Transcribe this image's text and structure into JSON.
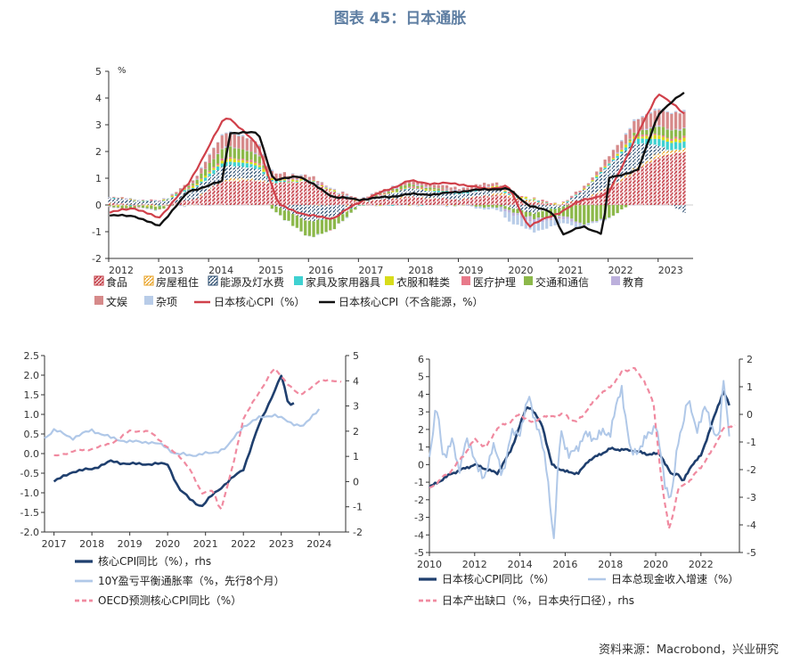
{
  "page": {
    "title": "图表 45：日本通胀",
    "source": "资料来源：Macrobond，兴业研究"
  },
  "colors": {
    "food": "#c0303a",
    "housing": "#e8a020",
    "energy": "#2a4b6e",
    "furniture": "#3fd1d1",
    "clothing": "#d8dc1a",
    "medical": "#e87a8a",
    "transport": "#8cb84a",
    "education": "#bcb0dc",
    "culture": "#d68a8a",
    "misc": "#b8cce8",
    "core_cpi": "#d0404a",
    "core_ex_energy": "#111111",
    "navy": "#1f3f6e",
    "lightblue": "#b0c8e8",
    "pink": "#f08aa0"
  },
  "chart_data": [
    {
      "type": "bar",
      "id": "top",
      "unit_label": "%",
      "ylim": [
        -2,
        5
      ],
      "y_ticks": [
        "-2",
        "-1",
        "0",
        "1",
        "2",
        "3",
        "4",
        "5"
      ],
      "x_ticks": [
        "2012",
        "2013",
        "2014",
        "2015",
        "2016",
        "2017",
        "2018",
        "2019",
        "2020",
        "2021",
        "2022",
        "2023"
      ],
      "x_range": [
        2012.0,
        2023.7
      ],
      "legend": [
        {
          "label": "食品",
          "swatch": "hatch",
          "color": "#c0303a"
        },
        {
          "label": "房屋租住",
          "swatch": "hatch",
          "color": "#e8a020"
        },
        {
          "label": "能源及灯水费",
          "swatch": "hatch",
          "color": "#2a4b6e"
        },
        {
          "label": "家具及家用器具",
          "swatch": "solid",
          "color": "#3fd1d1"
        },
        {
          "label": "衣服和鞋类",
          "swatch": "solid",
          "color": "#d8dc1a"
        },
        {
          "label": "医疗护理",
          "swatch": "solid",
          "color": "#e87a8a"
        },
        {
          "label": "交通和通信",
          "swatch": "solid",
          "color": "#8cb84a"
        },
        {
          "label": "教育",
          "swatch": "solid",
          "color": "#bcb0dc"
        },
        {
          "label": "文娱",
          "swatch": "solid",
          "color": "#d68a8a"
        },
        {
          "label": "杂项",
          "swatch": "solid",
          "color": "#b8cce8"
        },
        {
          "label": "日本核心CPI（%）",
          "swatch": "line",
          "color": "#d0404a"
        },
        {
          "label": "日本核心CPI（不含能源，%）",
          "swatch": "line",
          "color": "#111111"
        }
      ],
      "bar_series_order": [
        "食品",
        "房屋租住",
        "能源及灯水费",
        "家具及家用器具",
        "衣服和鞋类",
        "医疗护理",
        "交通和通信",
        "教育",
        "文娱",
        "杂项"
      ],
      "components_knots": {
        "x": [
          2012.0,
          2013.0,
          2013.7,
          2014.3,
          2014.4,
          2015.0,
          2015.3,
          2016.0,
          2016.5,
          2017.0,
          2018.0,
          2019.0,
          2019.8,
          2020.0,
          2020.5,
          2021.0,
          2021.5,
          2022.0,
          2022.5,
          2023.0,
          2023.6
        ],
        "食品": [
          0.05,
          0.0,
          0.2,
          0.9,
          0.9,
          0.9,
          0.8,
          0.9,
          0.5,
          0.1,
          0.3,
          0.2,
          0.4,
          0.3,
          0.1,
          0.0,
          0.2,
          0.6,
          1.2,
          1.8,
          2.0
        ],
        "房屋租住": [
          0.0,
          -0.02,
          0.0,
          0.05,
          0.1,
          0.05,
          0.02,
          0.0,
          0.0,
          0.0,
          0.02,
          0.0,
          0.05,
          0.1,
          0.05,
          0.0,
          0.02,
          0.05,
          0.1,
          0.15,
          0.15
        ],
        "能源及灯水费": [
          0.2,
          0.1,
          0.4,
          0.5,
          0.5,
          0.4,
          0.0,
          -0.6,
          -0.5,
          0.0,
          0.3,
          0.2,
          0.2,
          -0.1,
          -0.3,
          -0.1,
          0.3,
          0.8,
          1.0,
          0.3,
          -0.4
        ],
        "家具及家用器具": [
          0.0,
          0.0,
          0.05,
          0.15,
          0.15,
          0.12,
          0.05,
          0.02,
          0.0,
          0.0,
          0.0,
          0.05,
          0.05,
          0.03,
          0.02,
          0.0,
          0.02,
          0.05,
          0.15,
          0.25,
          0.28
        ],
        "衣服和鞋类": [
          0.0,
          0.0,
          0.05,
          0.1,
          0.1,
          0.08,
          0.05,
          0.03,
          0.02,
          0.0,
          0.02,
          0.02,
          0.03,
          0.03,
          0.02,
          0.0,
          0.02,
          0.05,
          0.08,
          0.12,
          0.12
        ],
        "医疗护理": [
          0.0,
          0.0,
          0.02,
          0.05,
          0.05,
          0.05,
          0.03,
          0.02,
          0.02,
          0.02,
          0.03,
          0.03,
          0.03,
          0.02,
          0.02,
          0.02,
          0.02,
          0.02,
          0.03,
          0.05,
          0.05
        ],
        "交通和通信": [
          -0.05,
          -0.1,
          0.1,
          0.4,
          0.4,
          0.3,
          -0.2,
          -0.6,
          -0.4,
          0.0,
          0.1,
          0.0,
          -0.1,
          -0.1,
          -0.2,
          -0.3,
          -0.7,
          -0.5,
          0.1,
          0.3,
          0.3
        ],
        "教育": [
          0.0,
          0.0,
          0.0,
          0.02,
          0.02,
          0.02,
          0.02,
          0.02,
          0.02,
          0.02,
          0.02,
          0.02,
          0.0,
          -0.1,
          -0.15,
          -0.1,
          -0.05,
          0.0,
          0.02,
          0.03,
          0.03
        ],
        "文娱": [
          0.0,
          0.0,
          0.1,
          0.5,
          0.5,
          0.4,
          0.2,
          0.1,
          0.0,
          0.05,
          0.1,
          0.1,
          0.1,
          0.05,
          0.0,
          0.0,
          0.05,
          0.2,
          0.4,
          0.6,
          0.6
        ],
        "杂项": [
          0.0,
          0.0,
          0.0,
          0.05,
          0.05,
          0.05,
          0.02,
          0.0,
          0.0,
          0.0,
          0.0,
          0.0,
          -0.1,
          -0.3,
          -0.35,
          -0.2,
          -0.1,
          0.0,
          0.05,
          0.05,
          0.05
        ]
      },
      "core_cpi_knots": {
        "x": [
          2012.0,
          2012.5,
          2013.0,
          2013.6,
          2014.3,
          2014.4,
          2015.0,
          2015.4,
          2016.0,
          2016.5,
          2017.0,
          2017.5,
          2018.0,
          2018.5,
          2019.0,
          2019.5,
          2020.0,
          2020.4,
          2021.0,
          2021.5,
          2022.0,
          2022.5,
          2023.0,
          2023.6
        ],
        "y": [
          -0.3,
          -0.1,
          -0.5,
          0.8,
          3.2,
          3.3,
          2.2,
          0.0,
          -0.4,
          -0.5,
          0.1,
          0.5,
          0.9,
          0.8,
          0.8,
          0.6,
          0.7,
          -0.8,
          -0.3,
          0.2,
          0.4,
          2.3,
          4.2,
          3.3
        ]
      },
      "core_ex_energy_knots": {
        "x": [
          2012.0,
          2012.5,
          2013.0,
          2013.6,
          2014.3,
          2014.4,
          2015.0,
          2015.3,
          2015.8,
          2016.5,
          2017.0,
          2017.6,
          2018.0,
          2018.6,
          2019.0,
          2019.7,
          2020.0,
          2020.4,
          2020.9,
          2021.1,
          2021.5,
          2021.9,
          2022.0,
          2022.6,
          2023.0,
          2023.5,
          2023.6
        ],
        "y": [
          -0.4,
          -0.4,
          -0.8,
          0.5,
          0.9,
          2.7,
          2.7,
          0.9,
          1.1,
          0.3,
          0.2,
          0.3,
          0.4,
          0.4,
          0.5,
          0.6,
          0.6,
          0.0,
          -0.3,
          -1.1,
          -0.8,
          -1.1,
          1.0,
          1.3,
          3.4,
          4.2,
          4.2
        ]
      }
    },
    {
      "type": "line",
      "id": "bottom-left",
      "y_left_ticks": [
        "-2.0",
        "-1.5",
        "-1.0",
        "-0.5",
        "0.0",
        "0.5",
        "1.0",
        "1.5",
        "2.0",
        "2.5"
      ],
      "y_right_ticks": [
        "-2",
        "-1",
        "0",
        "1",
        "2",
        "3",
        "4",
        "5"
      ],
      "ylim_left": [
        -2.0,
        2.5
      ],
      "ylim_right": [
        -2,
        5
      ],
      "x_ticks": [
        "2017",
        "2018",
        "2019",
        "2020",
        "2021",
        "2022",
        "2023",
        "2024"
      ],
      "x_range": [
        2016.75,
        2024.7
      ],
      "series": [
        {
          "name": "核心CPI同比（%），rhs",
          "axis": "right",
          "color": "#1f3f6e",
          "x": [
            2017.0,
            2017.5,
            2018.0,
            2018.5,
            2019.0,
            2019.5,
            2020.0,
            2020.3,
            2020.6,
            2020.9,
            2021.2,
            2021.6,
            2022.0,
            2022.4,
            2022.7,
            2023.0,
            2023.2,
            2023.4
          ],
          "y": [
            0.0,
            0.4,
            0.5,
            0.8,
            0.7,
            0.7,
            0.7,
            -0.3,
            -0.7,
            -1.0,
            -0.5,
            0.0,
            0.5,
            2.2,
            3.2,
            4.2,
            3.0,
            3.2
          ]
        },
        {
          "name": "10Y盈亏平衡通胀率（%，先行8个月）",
          "axis": "left",
          "color": "#b0c8e8",
          "x": [
            2016.75,
            2017.0,
            2017.5,
            2018.0,
            2018.5,
            2019.0,
            2019.5,
            2019.9,
            2020.2,
            2020.6,
            2020.9,
            2021.2,
            2021.6,
            2022.0,
            2022.4,
            2022.8,
            2023.2,
            2023.6,
            2024.0
          ],
          "y": [
            0.4,
            0.6,
            0.4,
            0.6,
            0.4,
            0.3,
            0.3,
            0.2,
            0.0,
            -0.05,
            0.0,
            0.0,
            0.2,
            0.7,
            0.9,
            1.0,
            0.8,
            0.7,
            1.15
          ]
        },
        {
          "name": "OECD预测核心CPI同比（%）",
          "axis": "right",
          "color": "#f08aa0",
          "x": [
            2017.0,
            2017.5,
            2018.0,
            2018.5,
            2019.0,
            2019.5,
            2019.9,
            2020.3,
            2020.6,
            2020.9,
            2021.2,
            2021.4,
            2021.7,
            2022.0,
            2022.4,
            2022.8,
            2023.1,
            2023.5,
            2024.0,
            2024.6
          ],
          "y": [
            1.0,
            1.2,
            1.3,
            1.5,
            2.0,
            2.0,
            1.5,
            1.0,
            0.5,
            -0.5,
            -0.3,
            -1.2,
            0.5,
            2.5,
            3.5,
            4.5,
            4.0,
            3.4,
            4.0,
            4.0
          ]
        }
      ]
    },
    {
      "type": "line",
      "id": "bottom-right",
      "y_left_ticks": [
        "-5",
        "-4",
        "-3",
        "-2",
        "-1",
        "0",
        "1",
        "2",
        "3",
        "4",
        "5",
        "6"
      ],
      "y_right_ticks": [
        "-5",
        "-4",
        "-3",
        "-2",
        "-1",
        "0",
        "1",
        "2"
      ],
      "ylim_left": [
        -5,
        6
      ],
      "ylim_right": [
        -5,
        2
      ],
      "x_ticks": [
        "2010",
        "2012",
        "2014",
        "2016",
        "2018",
        "2020",
        "2022"
      ],
      "x_range": [
        2010.0,
        2023.7
      ],
      "series": [
        {
          "name": "日本核心CPI同比（%）",
          "axis": "left",
          "color": "#1f3f6e",
          "x": [
            2010.0,
            2011.0,
            2012.0,
            2013.0,
            2013.6,
            2014.3,
            2014.5,
            2015.0,
            2015.4,
            2016.0,
            2016.6,
            2017.0,
            2018.0,
            2019.0,
            2019.6,
            2020.2,
            2020.7,
            2021.0,
            2021.2,
            2021.6,
            2022.0,
            2022.5,
            2023.0,
            2023.3
          ],
          "y": [
            -1.3,
            -0.5,
            0.0,
            -0.5,
            0.8,
            3.3,
            3.2,
            2.2,
            0.0,
            -0.4,
            -0.5,
            0.2,
            0.9,
            0.8,
            0.6,
            0.6,
            -0.6,
            -0.5,
            -1.0,
            0.0,
            0.5,
            2.4,
            4.2,
            3.2
          ]
        },
        {
          "name": "日本总现金收入增速（%）",
          "axis": "right",
          "color": "#b0c8e8",
          "x": [
            2010.0,
            2010.3,
            2010.6,
            2011.0,
            2011.3,
            2011.6,
            2012.0,
            2012.4,
            2012.8,
            2013.2,
            2013.6,
            2014.0,
            2014.4,
            2014.8,
            2015.2,
            2015.5,
            2015.8,
            2016.2,
            2016.8,
            2017.4,
            2018.0,
            2018.5,
            2018.9,
            2019.5,
            2020.0,
            2020.4,
            2020.7,
            2021.0,
            2021.4,
            2021.8,
            2022.2,
            2022.8,
            2023.0,
            2023.3
          ],
          "y": [
            -1.5,
            0.3,
            -1.5,
            -1.0,
            -2.0,
            -1.0,
            -1.5,
            -2.5,
            -1.0,
            -2.2,
            -0.8,
            -0.6,
            0.6,
            -0.5,
            -2.0,
            -4.6,
            -0.5,
            -1.6,
            -0.8,
            -0.8,
            -0.6,
            1.0,
            -1.5,
            -1.0,
            -0.3,
            -2.5,
            -3.0,
            -1.0,
            0.5,
            -0.5,
            0.2,
            -1.0,
            1.3,
            -1.0
          ]
        },
        {
          "name": "日本产出缺口（%，日本央行口径），rhs",
          "axis": "right",
          "color": "#f08aa0",
          "x": [
            2010.0,
            2011.0,
            2011.5,
            2012.0,
            2012.5,
            2013.0,
            2013.5,
            2014.0,
            2014.5,
            2015.0,
            2016.0,
            2016.5,
            2017.0,
            2017.5,
            2018.0,
            2018.5,
            2019.0,
            2019.5,
            2019.9,
            2020.3,
            2020.6,
            2021.0,
            2021.5,
            2022.0,
            2022.5,
            2023.0,
            2023.5
          ],
          "y": [
            -2.7,
            -2.0,
            -1.5,
            -0.9,
            -1.2,
            -0.5,
            -0.3,
            0.0,
            -0.3,
            -0.1,
            0.0,
            -0.3,
            0.2,
            0.7,
            1.0,
            1.5,
            1.7,
            1.2,
            0.4,
            -2.7,
            -4.2,
            -2.7,
            -2.4,
            -1.9,
            -1.3,
            -0.5,
            -0.4
          ]
        }
      ]
    }
  ]
}
